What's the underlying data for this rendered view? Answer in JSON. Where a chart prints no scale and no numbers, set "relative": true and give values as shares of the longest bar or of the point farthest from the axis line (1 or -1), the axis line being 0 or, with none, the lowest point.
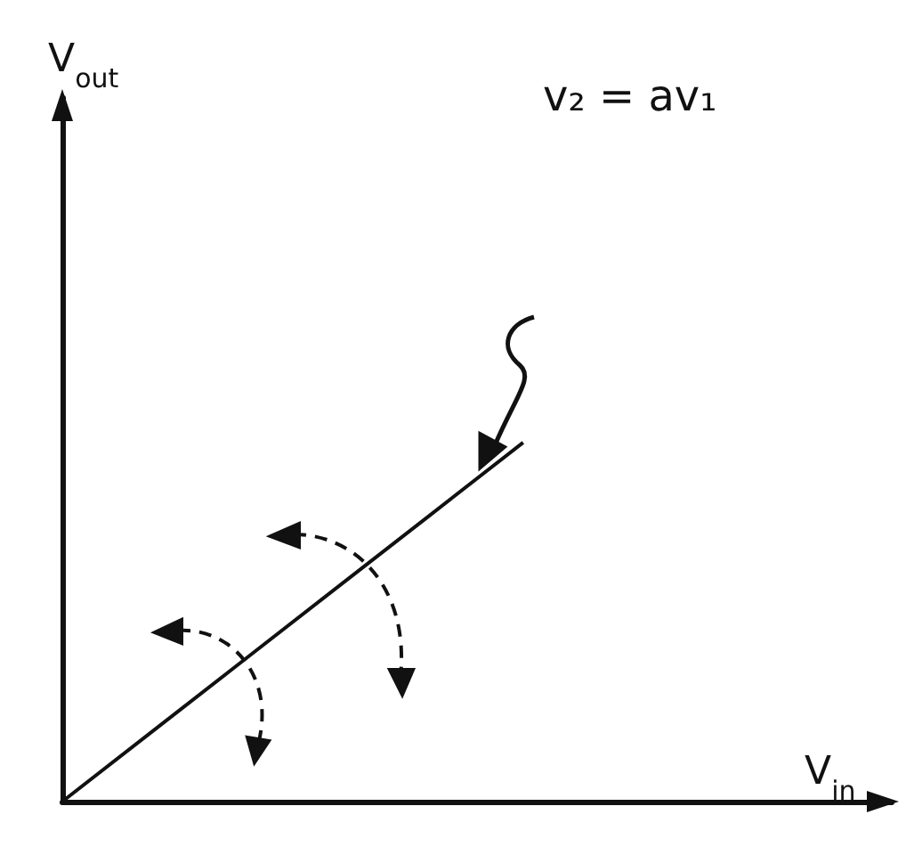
{
  "chart_data": {
    "type": "line",
    "xlabel": "V$_{in}$",
    "annotations": [
      "V$_{out}$",
      "v₂ = av₁"
    ],
    "categories": [
      null,
      null,
      null,
      null,
      null,
      null,
      null,
      null,
      null,
      null
    ],
    "values": [
      0,
      0.2,
      0.4,
      0.6,
      0.8,
      1,
      null,
      null,
      null,
      null
    ],
    "color": "#111111",
    "relative": true
  }
}
